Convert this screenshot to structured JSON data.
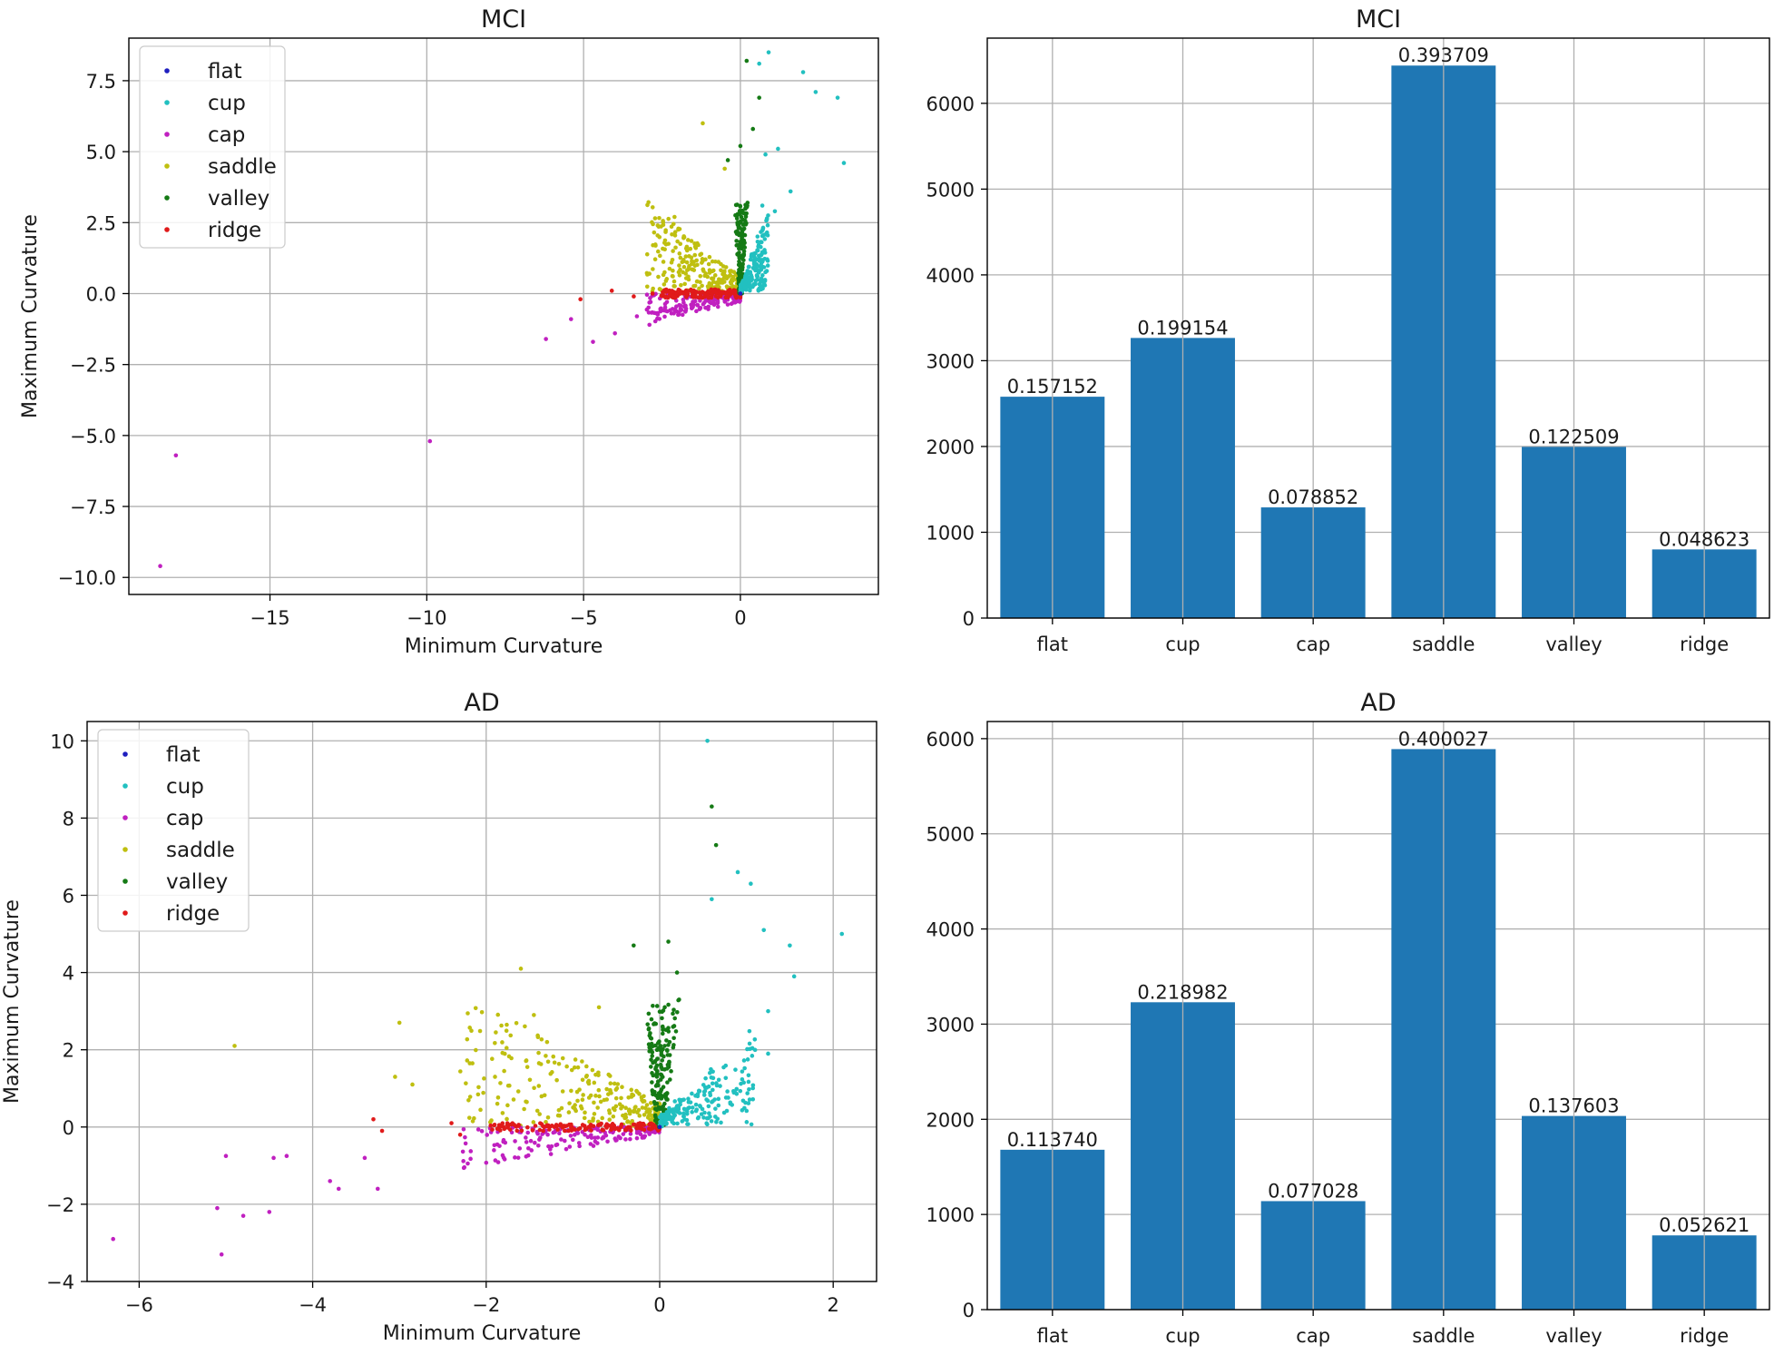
{
  "figure": {
    "legend_order": [
      "flat",
      "cup",
      "cap",
      "saddle",
      "valley",
      "ridge"
    ]
  },
  "colors": {
    "flat": "#1f1fbf",
    "cup": "#22c0c0",
    "cap": "#c020c0",
    "saddle": "#bfbf10",
    "valley": "#157a15",
    "ridge": "#e01a1a",
    "bar": "#1f77b4",
    "grid": "#b0b0b0"
  },
  "chart_data": [
    {
      "id": "mci-scatter",
      "type": "scatter",
      "title": "MCI",
      "xlabel": "Minimum Curvature",
      "ylabel": "Maximum Curvature",
      "xlim": [
        -19.5,
        4.4
      ],
      "ylim": [
        -10.6,
        9.0
      ],
      "xticks": [
        -15,
        -10,
        -5,
        0
      ],
      "xtick_labels": [
        "−15",
        "−10",
        "−5",
        "0"
      ],
      "yticks": [
        -10.0,
        -7.5,
        -5.0,
        -2.5,
        0.0,
        2.5,
        5.0,
        7.5
      ],
      "ytick_labels": [
        "−10.0",
        "−7.5",
        "−5.0",
        "−2.5",
        "0.0",
        "2.5",
        "5.0",
        "7.5"
      ],
      "legend": [
        "flat",
        "cup",
        "cap",
        "saddle",
        "valley",
        "ridge"
      ],
      "legend_loc": "upper left",
      "series": [
        {
          "name": "flat",
          "points": [
            [
              0,
              0
            ]
          ]
        },
        {
          "name": "cup",
          "points": [
            [
              0.9,
              8.5
            ],
            [
              0.6,
              8.1
            ],
            [
              2.0,
              7.8
            ],
            [
              3.1,
              6.9
            ],
            [
              3.3,
              4.6
            ],
            [
              1.6,
              3.6
            ],
            [
              0.7,
              3.1
            ],
            [
              2.4,
              7.1
            ],
            [
              1.2,
              5.1
            ],
            [
              0.8,
              4.9
            ],
            [
              1.1,
              2.9
            ]
          ]
        },
        {
          "name": "cap",
          "points": [
            [
              -18.5,
              -9.6
            ],
            [
              -18.0,
              -5.7
            ],
            [
              -9.9,
              -5.2
            ],
            [
              -6.2,
              -1.6
            ],
            [
              -4.7,
              -1.7
            ],
            [
              -5.4,
              -0.9
            ],
            [
              -4.0,
              -1.4
            ],
            [
              -3.3,
              -0.8
            ],
            [
              -2.9,
              -1.1
            ]
          ]
        },
        {
          "name": "saddle",
          "points": [
            [
              -1.2,
              6.0
            ],
            [
              -2.1,
              2.7
            ],
            [
              -2.9,
              0.7
            ],
            [
              -1.7,
              1.1
            ],
            [
              -0.5,
              4.4
            ]
          ]
        },
        {
          "name": "valley",
          "points": [
            [
              0.2,
              8.2
            ],
            [
              0.6,
              6.9
            ],
            [
              0.0,
              5.2
            ],
            [
              0.4,
              5.8
            ],
            [
              -0.4,
              4.7
            ]
          ]
        },
        {
          "name": "ridge",
          "points": [
            [
              -5.1,
              -0.2
            ],
            [
              -4.1,
              0.1
            ],
            [
              -3.4,
              -0.1
            ],
            [
              -2.8,
              0.0
            ]
          ]
        }
      ]
    },
    {
      "id": "mci-bar",
      "type": "bar",
      "title": "MCI",
      "xlabel": "",
      "ylabel": "",
      "categories": [
        "flat",
        "cup",
        "cap",
        "saddle",
        "valley",
        "ridge"
      ],
      "values": [
        2580,
        3265,
        1290,
        6440,
        1995,
        800
      ],
      "bar_labels": [
        "0.157152",
        "0.199154",
        "0.078852",
        "0.393709",
        "0.122509",
        "0.048623"
      ],
      "ylim": [
        0,
        6760
      ],
      "yticks": [
        0,
        1000,
        2000,
        3000,
        4000,
        5000,
        6000
      ],
      "ytick_labels": [
        "0",
        "1000",
        "2000",
        "3000",
        "4000",
        "5000",
        "6000"
      ]
    },
    {
      "id": "ad-scatter",
      "type": "scatter",
      "title": "AD",
      "xlabel": "Minimum Curvature",
      "ylabel": "Maximum Curvature",
      "xlim": [
        -6.6,
        2.5
      ],
      "ylim": [
        -4.0,
        10.5
      ],
      "xticks": [
        -6,
        -4,
        -2,
        0,
        2
      ],
      "xtick_labels": [
        "−6",
        "−4",
        "−2",
        "0",
        "2"
      ],
      "yticks": [
        -4,
        -2,
        0,
        2,
        4,
        6,
        8,
        10
      ],
      "ytick_labels": [
        "−4",
        "−2",
        "0",
        "2",
        "4",
        "6",
        "8",
        "10"
      ],
      "legend": [
        "flat",
        "cup",
        "cap",
        "saddle",
        "valley",
        "ridge"
      ],
      "legend_loc": "upper left",
      "series": [
        {
          "name": "flat",
          "points": [
            [
              0,
              0
            ]
          ]
        },
        {
          "name": "cup",
          "points": [
            [
              0.55,
              10.0
            ],
            [
              0.9,
              6.6
            ],
            [
              1.05,
              6.3
            ],
            [
              0.6,
              5.9
            ],
            [
              2.1,
              5.0
            ],
            [
              1.2,
              5.1
            ],
            [
              1.5,
              4.7
            ],
            [
              1.55,
              3.9
            ],
            [
              1.25,
              3.0
            ],
            [
              1.25,
              1.9
            ]
          ]
        },
        {
          "name": "cap",
          "points": [
            [
              -6.3,
              -2.9
            ],
            [
              -5.05,
              -3.3
            ],
            [
              -5.1,
              -2.1
            ],
            [
              -4.8,
              -2.3
            ],
            [
              -4.5,
              -2.2
            ],
            [
              -5.0,
              -0.75
            ],
            [
              -4.45,
              -0.8
            ],
            [
              -4.3,
              -0.75
            ],
            [
              -3.8,
              -1.4
            ],
            [
              -3.7,
              -1.6
            ],
            [
              -3.25,
              -1.6
            ],
            [
              -3.4,
              -0.8
            ]
          ]
        },
        {
          "name": "saddle",
          "points": [
            [
              -4.9,
              2.1
            ],
            [
              -3.0,
              2.7
            ],
            [
              -3.05,
              1.3
            ],
            [
              -2.85,
              1.1
            ],
            [
              -1.6,
              4.1
            ],
            [
              -1.45,
              2.9
            ],
            [
              -0.7,
              3.1
            ]
          ]
        },
        {
          "name": "valley",
          "points": [
            [
              0.6,
              8.3
            ],
            [
              0.65,
              7.3
            ],
            [
              -0.3,
              4.7
            ],
            [
              0.1,
              4.8
            ],
            [
              0.2,
              4.0
            ]
          ]
        },
        {
          "name": "ridge",
          "points": [
            [
              -3.3,
              0.2
            ],
            [
              -3.2,
              -0.1
            ],
            [
              -2.4,
              0.1
            ],
            [
              -2.3,
              -0.2
            ],
            [
              -1.8,
              0.0
            ]
          ]
        }
      ]
    },
    {
      "id": "ad-bar",
      "type": "bar",
      "title": "AD",
      "xlabel": "",
      "ylabel": "",
      "categories": [
        "flat",
        "cup",
        "cap",
        "saddle",
        "valley",
        "ridge"
      ],
      "values": [
        1680,
        3230,
        1140,
        5890,
        2035,
        780
      ],
      "bar_labels": [
        "0.113740",
        "0.218982",
        "0.077028",
        "0.400027",
        "0.137603",
        "0.052621"
      ],
      "ylim": [
        0,
        6180
      ],
      "yticks": [
        0,
        1000,
        2000,
        3000,
        4000,
        5000,
        6000
      ],
      "ytick_labels": [
        "0",
        "1000",
        "2000",
        "3000",
        "4000",
        "5000",
        "6000"
      ]
    }
  ]
}
